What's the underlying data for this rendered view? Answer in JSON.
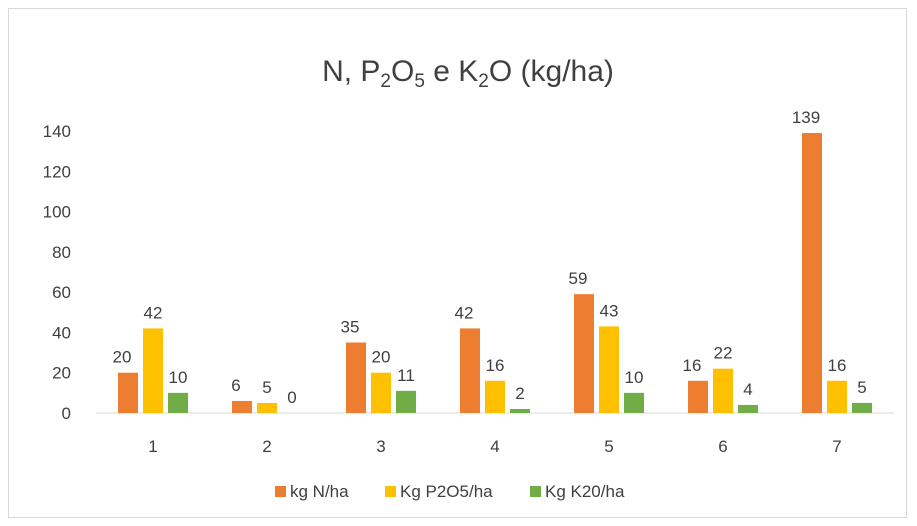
{
  "chart_data": {
    "type": "bar",
    "title": {
      "parts": [
        {
          "text": "N, P",
          "sub": false
        },
        {
          "text": "2",
          "sub": true
        },
        {
          "text": "O",
          "sub": false
        },
        {
          "text": "5",
          "sub": true
        },
        {
          "text": " e K",
          "sub": false
        },
        {
          "text": "2",
          "sub": true
        },
        {
          "text": "O (kg/ha)",
          "sub": false
        }
      ]
    },
    "categories": [
      "1",
      "2",
      "3",
      "4",
      "5",
      "6",
      "7"
    ],
    "series": [
      {
        "name": "kg N/ha",
        "color": "#ed7d31",
        "values": [
          20,
          6,
          35,
          42,
          59,
          16,
          139
        ]
      },
      {
        "name": "Kg P2O5/ha",
        "color": "#ffc000",
        "values": [
          42,
          5,
          20,
          16,
          43,
          22,
          16
        ]
      },
      {
        "name": "Kg K20/ha",
        "color": "#70ad47",
        "values": [
          10,
          0,
          11,
          2,
          10,
          4,
          5
        ]
      }
    ],
    "ylim": [
      0,
      140
    ],
    "yticks": [
      0,
      20,
      40,
      60,
      80,
      100,
      120,
      140
    ],
    "grid": false,
    "data_labels": true,
    "legend_position": "bottom"
  }
}
